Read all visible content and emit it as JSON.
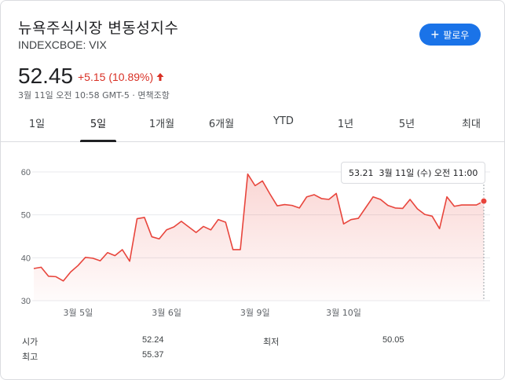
{
  "header": {
    "title": "뉴욕주식시장 변동성지수",
    "ticker": "INDEXCBOE: VIX",
    "follow_label": "팔로우",
    "follow_icon": "plus-icon"
  },
  "quote": {
    "price": "52.45",
    "change": "+5.15 (10.89%)",
    "direction_icon": "arrow-up-icon",
    "change_color": "#d93025",
    "timestamp": "3월 11일 오전 10:58 GMT-5 · 면책조항"
  },
  "tabs": [
    {
      "label": "1일"
    },
    {
      "label": "5일",
      "active": true
    },
    {
      "label": "1개월"
    },
    {
      "label": "6개월"
    },
    {
      "label": "YTD"
    },
    {
      "label": "1년"
    },
    {
      "label": "5년"
    },
    {
      "label": "최대"
    }
  ],
  "tooltip": {
    "value": "53.21",
    "datetime": "3월 11일 (수) 오전 11:00"
  },
  "stats": {
    "open_label": "시가",
    "open_value": "52.24",
    "low_label": "최저",
    "low_value": "50.05",
    "high_label": "최고",
    "high_value": "55.37"
  },
  "colors": {
    "accent": "#1a73e8",
    "line": "#e8453c",
    "fill": "#fde7ea"
  },
  "chart_data": {
    "type": "area",
    "ylim": [
      30,
      60
    ],
    "y_ticks": [
      30,
      40,
      50,
      60
    ],
    "x_tick_labels": [
      "3월 5일",
      "3월 6일",
      "3월 9일",
      "3월 10일"
    ],
    "x_tick_index": [
      6,
      18,
      30,
      42
    ],
    "values": [
      37.5,
      37.8,
      35.7,
      35.6,
      34.6,
      36.7,
      38.2,
      40.1,
      39.9,
      39.3,
      41.2,
      40.5,
      41.9,
      39.2,
      49.1,
      49.4,
      44.9,
      44.4,
      46.5,
      47.2,
      48.5,
      47.2,
      45.9,
      47.3,
      46.5,
      48.9,
      48.3,
      41.9,
      41.9,
      59.5,
      56.8,
      57.9,
      54.9,
      52.1,
      52.4,
      52.2,
      51.6,
      54.2,
      54.7,
      53.8,
      53.6,
      55.0,
      47.9,
      48.9,
      49.2,
      51.7,
      54.2,
      53.6,
      52.2,
      51.6,
      51.5,
      53.6,
      51.4,
      50.1,
      49.7,
      46.8,
      54.2,
      52.0,
      52.3,
      52.3,
      52.3,
      53.2
    ],
    "hover_index": 61,
    "grid": true
  }
}
